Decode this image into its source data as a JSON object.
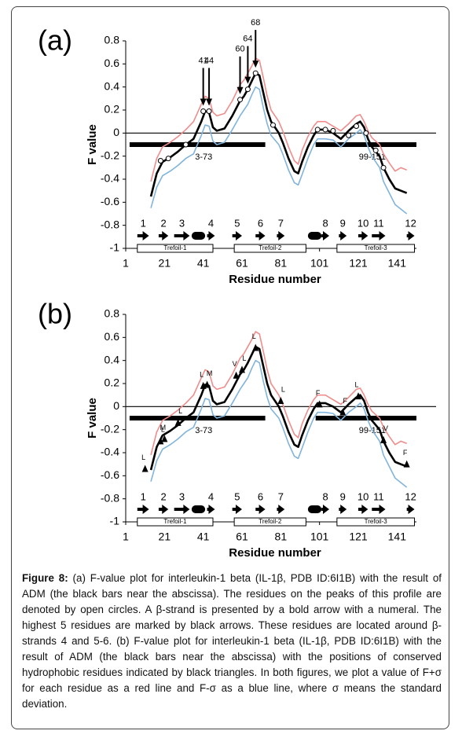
{
  "chart_data": [
    {
      "type": "line",
      "panel": "(a)",
      "xlabel": "Residue number",
      "ylabel": "F value",
      "xlim": [
        1,
        151
      ],
      "ylim": [
        -1,
        0.8
      ],
      "xticks": [
        1,
        21,
        41,
        61,
        81,
        101,
        121,
        141
      ],
      "yticks": [
        -1,
        -0.8,
        -0.6,
        -0.4,
        -0.2,
        0,
        0.2,
        0.4,
        0.6,
        0.8
      ],
      "x": [
        14,
        17,
        20,
        24,
        28,
        32,
        36,
        40,
        42,
        44,
        46,
        48,
        52,
        56,
        60,
        62,
        64,
        66,
        68,
        70,
        72,
        74,
        76,
        78,
        80,
        82,
        85,
        88,
        90,
        92,
        95,
        98,
        100,
        104,
        108,
        112,
        116,
        120,
        122,
        124,
        126,
        128,
        132,
        134,
        137,
        140,
        143,
        146
      ],
      "series": [
        {
          "color": "#f08c8c",
          "values": [
            -0.42,
            -0.22,
            -0.12,
            -0.08,
            -0.03,
            0.03,
            0.1,
            0.25,
            0.32,
            0.3,
            0.18,
            0.15,
            0.17,
            0.28,
            0.42,
            0.46,
            0.52,
            0.58,
            0.65,
            0.63,
            0.48,
            0.32,
            0.2,
            0.15,
            0.1,
            0.02,
            -0.12,
            -0.24,
            -0.27,
            -0.15,
            -0.03,
            0.06,
            0.1,
            0.1,
            0.06,
            0.02,
            0.08,
            0.15,
            0.16,
            0.1,
            0.02,
            -0.04,
            -0.1,
            -0.18,
            -0.26,
            -0.33,
            -0.3,
            -0.32
          ]
        },
        {
          "color": "#80b4dc",
          "values": [
            -0.65,
            -0.47,
            -0.37,
            -0.33,
            -0.28,
            -0.22,
            -0.18,
            -0.02,
            0.07,
            0.06,
            -0.07,
            -0.1,
            -0.08,
            0.03,
            0.15,
            0.2,
            0.25,
            0.33,
            0.4,
            0.38,
            0.22,
            0.08,
            -0.02,
            -0.06,
            -0.1,
            -0.18,
            -0.32,
            -0.43,
            -0.45,
            -0.36,
            -0.22,
            -0.1,
            -0.05,
            -0.05,
            -0.06,
            -0.12,
            -0.05,
            0,
            0.03,
            -0.02,
            -0.12,
            -0.2,
            -0.3,
            -0.42,
            -0.52,
            -0.62,
            -0.66,
            -0.7
          ]
        },
        {
          "color": "#000000",
          "values": [
            -0.55,
            -0.35,
            -0.25,
            -0.21,
            -0.16,
            -0.1,
            -0.05,
            0.1,
            0.19,
            0.18,
            0.05,
            0.02,
            0.04,
            0.15,
            0.28,
            0.32,
            0.38,
            0.45,
            0.52,
            0.5,
            0.35,
            0.2,
            0.1,
            0.05,
            0,
            -0.08,
            -0.22,
            -0.33,
            -0.35,
            -0.25,
            -0.12,
            -0.02,
            0.03,
            0.03,
            0,
            -0.05,
            0.02,
            0.08,
            0.1,
            0.05,
            -0.05,
            -0.12,
            -0.2,
            -0.3,
            -0.4,
            -0.48,
            -0.5,
            -0.52
          ]
        }
      ],
      "peaks": {
        "x": [
          19,
          23,
          32,
          41,
          44,
          60,
          64,
          68,
          77,
          100,
          104,
          108,
          116,
          120,
          125,
          130,
          134
        ],
        "values": [
          -0.24,
          -0.22,
          -0.1,
          0.19,
          0.19,
          0.29,
          0.38,
          0.52,
          0.07,
          0.03,
          0.03,
          0.02,
          -0.02,
          0.06,
          0,
          -0.15,
          -0.3
        ]
      },
      "arrows": {
        "x": [
          41,
          44,
          60,
          64,
          68
        ],
        "values": [
          0.19,
          0.19,
          0.29,
          0.38,
          0.52
        ]
      },
      "adm_bars": [
        {
          "label": "3-73",
          "start": 3,
          "end": 73,
          "value": -0.1
        },
        {
          "label": "99-151",
          "start": 99,
          "end": 151,
          "value": -0.1
        }
      ],
      "strands": [
        {
          "label": 1,
          "start": 7,
          "end": 13
        },
        {
          "label": 2,
          "start": 18,
          "end": 23
        },
        {
          "label": 3,
          "start": 26,
          "end": 34
        },
        {
          "label": 4,
          "start": 43,
          "end": 47
        },
        {
          "label": 5,
          "start": 56,
          "end": 61
        },
        {
          "label": 6,
          "start": 68,
          "end": 73
        },
        {
          "label": 7,
          "start": 79,
          "end": 83
        },
        {
          "label": 8,
          "start": 102,
          "end": 106
        },
        {
          "label": 9,
          "start": 111,
          "end": 115
        },
        {
          "label": 10,
          "start": 121,
          "end": 126
        },
        {
          "label": 11,
          "start": 128,
          "end": 135
        },
        {
          "label": 12,
          "start": 146,
          "end": 150
        }
      ],
      "helices": [
        {
          "start": 35,
          "end": 42
        },
        {
          "start": 95,
          "end": 102
        }
      ],
      "domains": [
        {
          "label": "Trefoil-1",
          "start": 7,
          "end": 46
        },
        {
          "label": "Trefoil-2",
          "start": 57,
          "end": 94
        },
        {
          "label": "Trefoil-3",
          "start": 110,
          "end": 150
        }
      ]
    },
    {
      "type": "line",
      "panel": "(b)",
      "xlabel": "Residue number",
      "ylabel": "F value",
      "xlim": [
        1,
        151
      ],
      "ylim": [
        -1,
        0.8
      ],
      "xticks": [
        1,
        21,
        41,
        61,
        81,
        101,
        121,
        141
      ],
      "yticks": [
        -1,
        -0.8,
        -0.6,
        -0.4,
        -0.2,
        0,
        0.2,
        0.4,
        0.6,
        0.8
      ],
      "x": [
        14,
        17,
        20,
        24,
        28,
        32,
        36,
        40,
        42,
        44,
        46,
        48,
        52,
        56,
        60,
        62,
        64,
        66,
        68,
        70,
        72,
        74,
        76,
        78,
        80,
        82,
        85,
        88,
        90,
        92,
        95,
        98,
        100,
        104,
        108,
        112,
        116,
        120,
        122,
        124,
        126,
        128,
        132,
        134,
        137,
        140,
        143,
        146
      ],
      "series": [
        {
          "color": "#f08c8c",
          "values": [
            -0.42,
            -0.22,
            -0.12,
            -0.08,
            -0.03,
            0.03,
            0.1,
            0.25,
            0.32,
            0.3,
            0.18,
            0.15,
            0.17,
            0.28,
            0.42,
            0.46,
            0.52,
            0.58,
            0.65,
            0.63,
            0.48,
            0.32,
            0.2,
            0.15,
            0.1,
            0.02,
            -0.12,
            -0.24,
            -0.27,
            -0.15,
            -0.03,
            0.06,
            0.1,
            0.1,
            0.06,
            0.02,
            0.08,
            0.15,
            0.16,
            0.1,
            0.02,
            -0.04,
            -0.1,
            -0.18,
            -0.26,
            -0.33,
            -0.3,
            -0.32
          ]
        },
        {
          "color": "#80b4dc",
          "values": [
            -0.65,
            -0.47,
            -0.37,
            -0.33,
            -0.28,
            -0.22,
            -0.18,
            -0.02,
            0.07,
            0.06,
            -0.07,
            -0.1,
            -0.08,
            0.03,
            0.15,
            0.2,
            0.25,
            0.33,
            0.4,
            0.38,
            0.22,
            0.08,
            -0.02,
            -0.06,
            -0.1,
            -0.18,
            -0.32,
            -0.43,
            -0.45,
            -0.36,
            -0.22,
            -0.1,
            -0.05,
            -0.05,
            -0.06,
            -0.12,
            -0.05,
            0,
            0.03,
            -0.02,
            -0.12,
            -0.2,
            -0.3,
            -0.42,
            -0.52,
            -0.62,
            -0.66,
            -0.7
          ]
        },
        {
          "color": "#000000",
          "values": [
            -0.55,
            -0.35,
            -0.25,
            -0.21,
            -0.16,
            -0.1,
            -0.05,
            0.1,
            0.19,
            0.18,
            0.05,
            0.02,
            0.04,
            0.15,
            0.28,
            0.32,
            0.38,
            0.45,
            0.52,
            0.5,
            0.35,
            0.2,
            0.1,
            0.05,
            0,
            -0.08,
            -0.22,
            -0.33,
            -0.35,
            -0.25,
            -0.12,
            -0.02,
            0.03,
            0.03,
            0,
            -0.05,
            0.02,
            0.08,
            0.1,
            0.05,
            -0.05,
            -0.12,
            -0.2,
            -0.3,
            -0.4,
            -0.48,
            -0.5,
            -0.52
          ]
        }
      ],
      "hydrophobic": {
        "x": [
          11,
          19,
          21,
          28,
          41,
          43,
          58,
          61,
          68,
          81,
          101,
          113,
          121,
          134,
          146
        ],
        "values": [
          -0.54,
          -0.3,
          -0.28,
          -0.14,
          0.18,
          0.19,
          0.27,
          0.32,
          0.51,
          0.05,
          0.02,
          -0.05,
          0.09,
          -0.29,
          -0.5
        ],
        "labels": [
          "L",
          "L",
          "M",
          "L",
          "L",
          "M",
          "V",
          "L",
          "L",
          "L",
          "F",
          "F",
          "L",
          "V",
          "F"
        ]
      },
      "adm_bars": [
        {
          "label": "3-73",
          "start": 3,
          "end": 73,
          "value": -0.1
        },
        {
          "label": "99-151",
          "start": 99,
          "end": 151,
          "value": -0.1
        }
      ],
      "strands": [
        {
          "label": 1,
          "start": 7,
          "end": 13
        },
        {
          "label": 2,
          "start": 18,
          "end": 23
        },
        {
          "label": 3,
          "start": 26,
          "end": 34
        },
        {
          "label": 4,
          "start": 43,
          "end": 47
        },
        {
          "label": 5,
          "start": 56,
          "end": 61
        },
        {
          "label": 6,
          "start": 68,
          "end": 73
        },
        {
          "label": 7,
          "start": 79,
          "end": 83
        },
        {
          "label": 8,
          "start": 102,
          "end": 106
        },
        {
          "label": 9,
          "start": 111,
          "end": 115
        },
        {
          "label": 10,
          "start": 121,
          "end": 126
        },
        {
          "label": 11,
          "start": 128,
          "end": 135
        },
        {
          "label": 12,
          "start": 146,
          "end": 150
        }
      ],
      "helices": [
        {
          "start": 35,
          "end": 42
        },
        {
          "start": 95,
          "end": 102
        }
      ],
      "domains": [
        {
          "label": "Trefoil-1",
          "start": 7,
          "end": 46
        },
        {
          "label": "Trefoil-2",
          "start": 57,
          "end": 94
        },
        {
          "label": "Trefoil-3",
          "start": 110,
          "end": 150
        }
      ]
    }
  ],
  "caption": {
    "label": "Figure 8:",
    "text": "(a) F-value plot for interleukin-1 beta (IL-1β, PDB ID:6I1B) with the result of ADM (the black bars near the abscissa). The residues on the peaks of this profile are denoted by open circles. A β-strand is presented by a bold arrow with a numeral. The highest 5 residues are marked by black arrows. These residues are located around β-strands 4 and 5-6. (b) F-value plot for interleukin-1 beta (IL-1β, PDB ID:6I1B) with the result of ADM (the black bars near the abscissa) with the positions of conserved hydrophobic residues indicated by black triangles. In both figures, we plot a value of F+σ for each residue as a red line and F-σ as a blue line, where σ means the standard deviation."
  }
}
